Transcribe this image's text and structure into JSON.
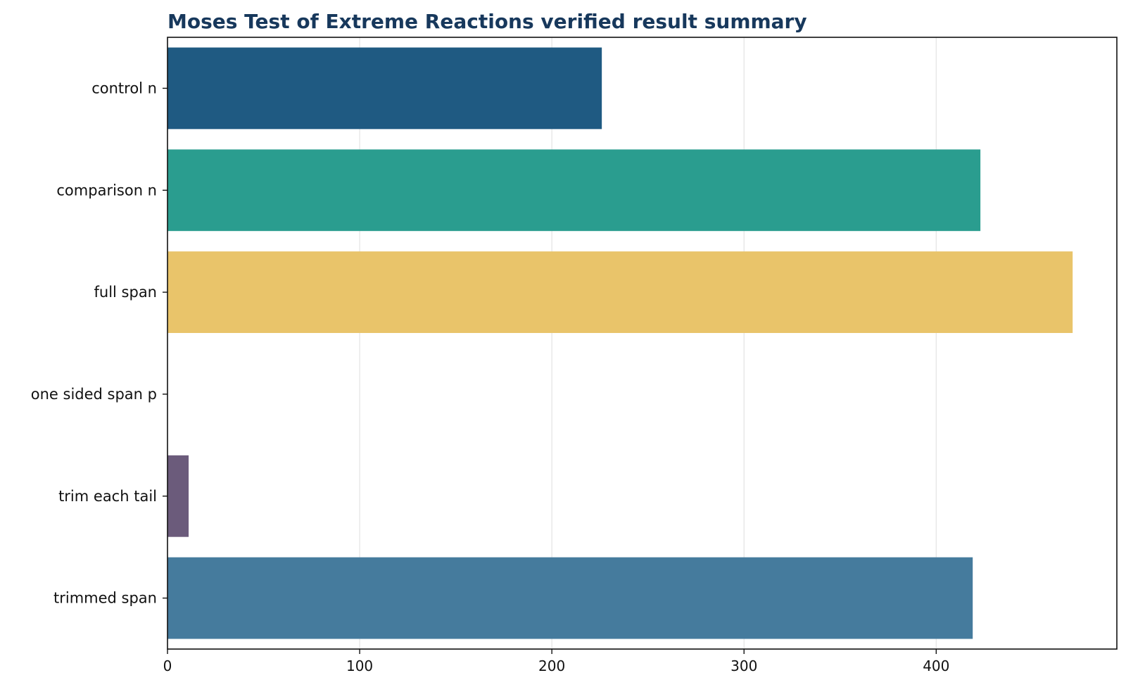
{
  "chart_data": {
    "type": "bar",
    "orientation": "horizontal",
    "title": "Moses Test of Extreme Reactions verified result summary",
    "xlabel": "",
    "ylabel": "",
    "categories": [
      "control n",
      "comparison n",
      "full span",
      "one sided span p",
      "trim each tail",
      "trimmed span"
    ],
    "values": [
      226,
      423,
      471,
      0.0,
      11,
      419
    ],
    "colors": [
      "#1f5a82",
      "#2a9d8f",
      "#e9c46a",
      "#2a9d8f",
      "#6b5b7b",
      "#457b9d"
    ],
    "xlim": [
      0,
      494
    ],
    "xticks": [
      0,
      100,
      200,
      300,
      400
    ],
    "grid": true
  }
}
